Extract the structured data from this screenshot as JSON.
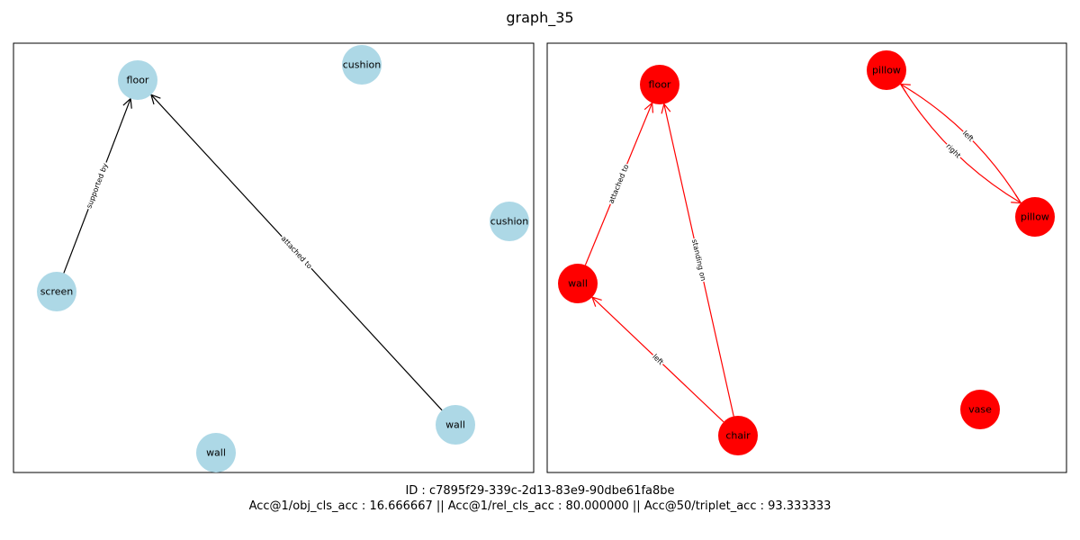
{
  "title": "graph_35",
  "footer": {
    "id_line": "ID : c7895f29-339c-2d13-83e9-90dbe61fa8be",
    "acc_line": "Acc@1/obj_cls_acc : 16.666667 || Acc@1/rel_cls_acc : 80.000000 || Acc@50/triplet_acc : 93.333333"
  },
  "colors": {
    "left_node": "#add8e6",
    "left_edge": "#000000",
    "right_node": "#ff0000",
    "right_edge": "#ff0000"
  },
  "graphs": [
    {
      "nodes": [
        {
          "id": "floor",
          "label": "floor"
        },
        {
          "id": "cushion1",
          "label": "cushion"
        },
        {
          "id": "cushion2",
          "label": "cushion"
        },
        {
          "id": "screen",
          "label": "screen"
        },
        {
          "id": "wall1",
          "label": "wall"
        },
        {
          "id": "wall2",
          "label": "wall"
        }
      ],
      "edges": [
        {
          "source": "screen",
          "target": "floor",
          "label": "supported by"
        },
        {
          "source": "wall1",
          "target": "floor",
          "label": "attached to"
        }
      ]
    },
    {
      "nodes": [
        {
          "id": "floor",
          "label": "floor"
        },
        {
          "id": "pillow1",
          "label": "pillow"
        },
        {
          "id": "pillow2",
          "label": "pillow"
        },
        {
          "id": "wall",
          "label": "wall"
        },
        {
          "id": "vase",
          "label": "vase"
        },
        {
          "id": "chair",
          "label": "chair"
        }
      ],
      "edges": [
        {
          "source": "wall",
          "target": "floor",
          "label": "attached to"
        },
        {
          "source": "chair",
          "target": "floor",
          "label": "standing on"
        },
        {
          "source": "chair",
          "target": "wall",
          "label": "left"
        },
        {
          "source": "pillow2",
          "target": "pillow1",
          "label": "left",
          "curve": 1
        },
        {
          "source": "pillow1",
          "target": "pillow2",
          "label": "right",
          "curve": 1
        }
      ]
    }
  ]
}
